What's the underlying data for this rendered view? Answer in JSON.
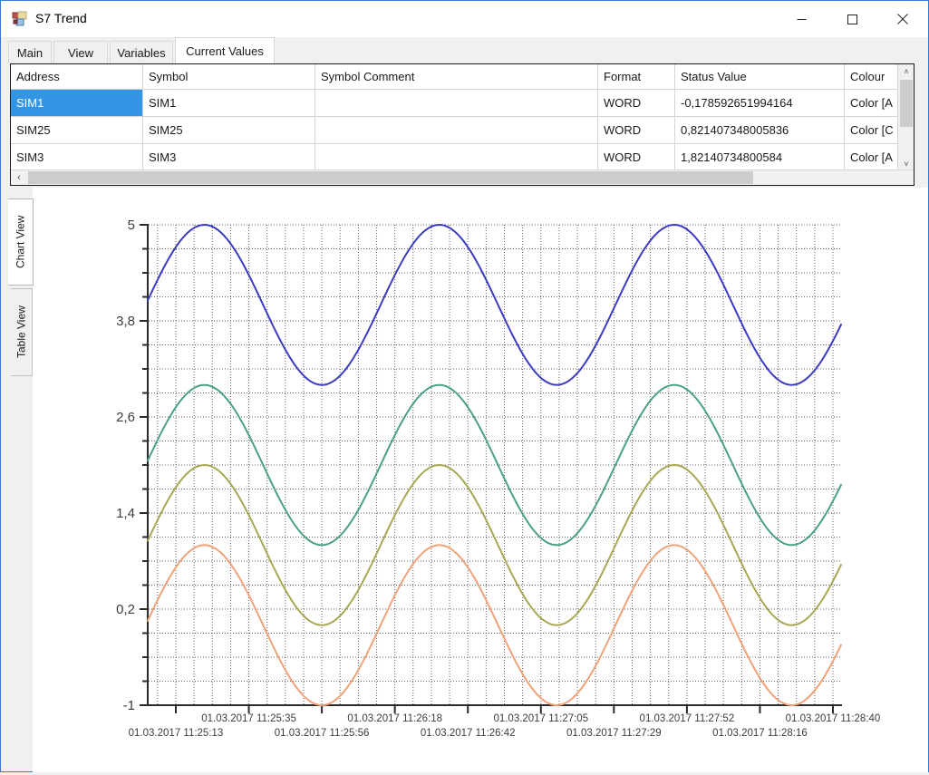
{
  "window": {
    "title": "S7 Trend",
    "controls": {
      "minimize": "minimize-icon",
      "maximize": "maximize-icon",
      "close": "close-icon"
    }
  },
  "tabs": {
    "items": [
      {
        "label": "Main",
        "selected": false
      },
      {
        "label": "View",
        "selected": false
      },
      {
        "label": "Variables",
        "selected": false
      },
      {
        "label": "Current Values",
        "selected": true
      }
    ]
  },
  "table": {
    "columns": [
      "Address",
      "Symbol",
      "Symbol Comment",
      "Format",
      "Status Value",
      "Colour"
    ],
    "rows": [
      {
        "address": "SIM1",
        "symbol": "SIM1",
        "comment": "",
        "format": "WORD",
        "status_value": "-0,178592651994164",
        "colour": "Color [A",
        "selected": true
      },
      {
        "address": "SIM25",
        "symbol": "SIM25",
        "comment": "",
        "format": "WORD",
        "status_value": "0,821407348005836",
        "colour": "Color [C",
        "selected": false
      },
      {
        "address": "SIM3",
        "symbol": "SIM3",
        "comment": "",
        "format": "WORD",
        "status_value": "1,82140734800584",
        "colour": "Color [A",
        "selected": false
      }
    ]
  },
  "side_tabs": {
    "chart": "Chart View",
    "table": "Table View"
  },
  "icons": {
    "scroll_up": "˄",
    "scroll_down": "˅",
    "scroll_left": "‹"
  },
  "chart_data": {
    "type": "line",
    "grid": "dotted",
    "legend": "none",
    "y_axis": {
      "min": -1,
      "max": 5,
      "tick_values": [
        5,
        3.8,
        2.6,
        1.4,
        0.2,
        -1
      ],
      "tick_labels": [
        "5",
        "3,8",
        "2,6",
        "1,4",
        "0,2",
        "-1"
      ],
      "minor_divisions_per_major": 4
    },
    "x_ticks": [
      "01.03.2017 11:25:13",
      "01.03.2017 11:25:35",
      "01.03.2017 11:25:56",
      "01.03.2017 11:26:18",
      "01.03.2017 11:26:42",
      "01.03.2017 11:27:05",
      "01.03.2017 11:27:29",
      "01.03.2017 11:27:52",
      "01.03.2017 11:28:16",
      "01.03.2017 11:28:40"
    ],
    "wave": {
      "period_seconds": 74,
      "peak_offset_seconds_from_first_tick": 9,
      "tick_interval_seconds": 23
    },
    "series": [
      {
        "color": "#3b3bc4",
        "center": 4,
        "amplitude": 1,
        "min": 3,
        "max": 5
      },
      {
        "color": "#4ba181",
        "center": 2,
        "amplitude": 1,
        "min": 1,
        "max": 3
      },
      {
        "color": "#a7a754",
        "center": 1,
        "amplitude": 1,
        "min": 0,
        "max": 2
      },
      {
        "color": "#f0a27a",
        "center": 0,
        "amplitude": 1,
        "min": -1,
        "max": 1
      }
    ]
  }
}
